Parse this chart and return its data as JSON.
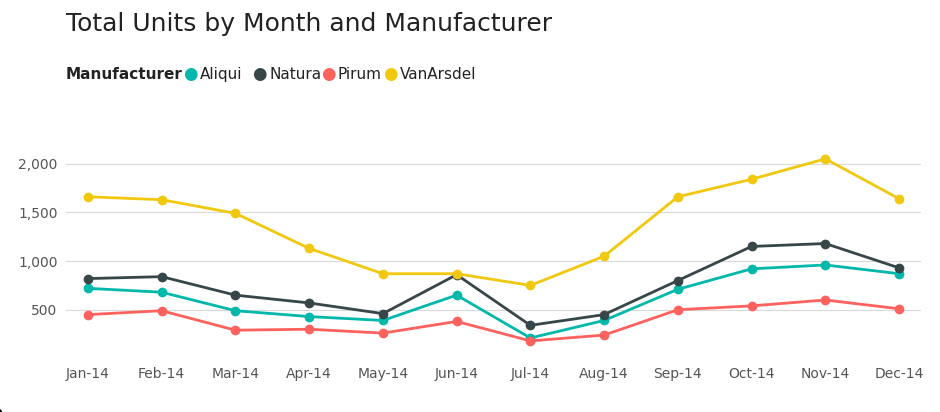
{
  "title": "Total Units by Month and Manufacturer",
  "legend_title": "Manufacturer",
  "months": [
    "Jan-14",
    "Feb-14",
    "Mar-14",
    "Apr-14",
    "May-14",
    "Jun-14",
    "Jul-14",
    "Aug-14",
    "Sep-14",
    "Oct-14",
    "Nov-14",
    "Dec-14"
  ],
  "series": {
    "Aliqui": {
      "values": [
        720,
        680,
        490,
        430,
        390,
        650,
        210,
        390,
        710,
        920,
        960,
        870
      ],
      "color": "#01B8AA"
    },
    "Natura": {
      "values": [
        820,
        840,
        650,
        570,
        460,
        860,
        340,
        450,
        800,
        1150,
        1180,
        930
      ],
      "color": "#374649"
    },
    "Pirum": {
      "values": [
        450,
        490,
        290,
        300,
        260,
        380,
        180,
        240,
        500,
        540,
        600,
        510
      ],
      "color": "#FD625E"
    },
    "VanArsdel": {
      "values": [
        1660,
        1630,
        1490,
        1130,
        870,
        870,
        750,
        1050,
        1660,
        1840,
        2050,
        1640
      ],
      "color": "#F2C80F"
    }
  },
  "ylim": [
    0,
    2200
  ],
  "yticks": [
    500,
    1000,
    1500,
    2000
  ],
  "ytick_labels": [
    "500",
    "1,000",
    "1,500",
    "2,000"
  ],
  "background_color": "#ffffff",
  "grid_color": "#d9d9d9",
  "title_fontsize": 18,
  "legend_fontsize": 11,
  "tick_fontsize": 10,
  "line_width": 2.0,
  "marker_size": 6
}
